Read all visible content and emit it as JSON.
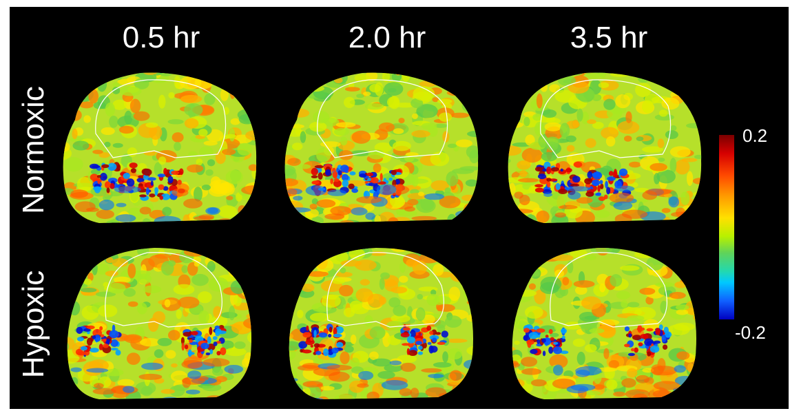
{
  "columns": [
    "0.5 hr",
    "2.0 hr",
    "3.5 hr"
  ],
  "rows": [
    "Normoxic",
    "Hypoxic"
  ],
  "colorbar": {
    "max_label": "0.2",
    "min_label": "-0.2",
    "max": 0.2,
    "min": -0.2
  },
  "colors": {
    "background": "#000000",
    "text": "#ffffff",
    "roi_outline": "#ffffff"
  }
}
